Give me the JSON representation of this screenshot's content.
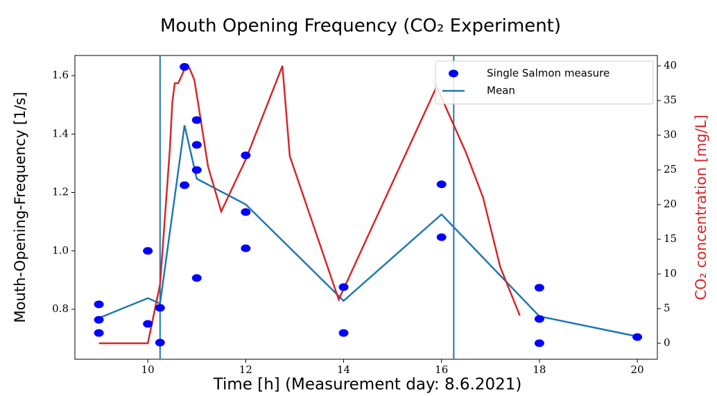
{
  "chart_data": {
    "type": "scatter",
    "title": "Mouth Opening Frequency (CO₂ Experiment)",
    "x_label": "Time [h] (Measurement day: 8.6.2021)",
    "y_label": "Mouth-Opening-Frequency [1/s]",
    "y2_label": "CO₂ concentration [mg/L]",
    "y2_label_color": "#d62728",
    "xlim": [
      8.51,
      20.41
    ],
    "xticks": [
      10,
      12,
      14,
      16,
      18,
      20
    ],
    "ylim": [
      0.629,
      1.669
    ],
    "yticks": [
      0.8,
      {
        "value": 1,
        "label": "1.0"
      },
      1.2,
      1.4,
      1.6
    ],
    "y2lim": [
      -2.3,
      41.5
    ],
    "y2ticks": [
      0,
      5,
      10,
      15,
      20,
      25,
      30,
      35,
      40
    ],
    "vlines": [
      10.25,
      16.25
    ],
    "vline_color": "#1f77b4",
    "legend": "upper right",
    "series": [
      {
        "name": "Single Salmon measure",
        "type": "scatter",
        "color": "#0000ff",
        "x": [
          9,
          9,
          9,
          10,
          10,
          10.25,
          10.25,
          10.75,
          10.75,
          11,
          11,
          11,
          11,
          12,
          12,
          12,
          14,
          14,
          16,
          16,
          18,
          18,
          18,
          20
        ],
        "values": [
          0.817,
          0.764,
          0.719,
          1.0,
          0.75,
          0.805,
          0.686,
          1.63,
          1.225,
          1.448,
          1.363,
          1.277,
          0.907,
          1.327,
          1.133,
          1.009,
          0.876,
          0.719,
          1.228,
          1.047,
          0.874,
          0.767,
          0.684,
          0.705
        ]
      },
      {
        "name": "Mean",
        "type": "line",
        "color": "#1f77b4",
        "x": [
          9,
          10,
          10.25,
          10.75,
          11,
          12,
          14,
          16,
          18,
          20
        ],
        "values": [
          0.77,
          0.838,
          0.82,
          1.43,
          1.247,
          1.159,
          0.829,
          1.125,
          0.776,
          0.707
        ]
      },
      {
        "type": "line",
        "axis": "y2",
        "color": "#d62728",
        "x": [
          9,
          10,
          10.25,
          10.45,
          10.5,
          10.55,
          10.62,
          10.7,
          10.77,
          10.85,
          10.95,
          11.03,
          11.23,
          11.5,
          12,
          12.75,
          12.9,
          13.9,
          15.9,
          16.5,
          16.85,
          17.2,
          17.6
        ],
        "values": [
          0,
          0,
          8.5,
          28,
          34.7,
          37.5,
          37.5,
          38.7,
          40,
          39.7,
          38,
          34.5,
          25.5,
          19,
          26.5,
          40,
          27,
          6.3,
          37,
          27.5,
          21,
          11,
          4
        ]
      }
    ]
  }
}
